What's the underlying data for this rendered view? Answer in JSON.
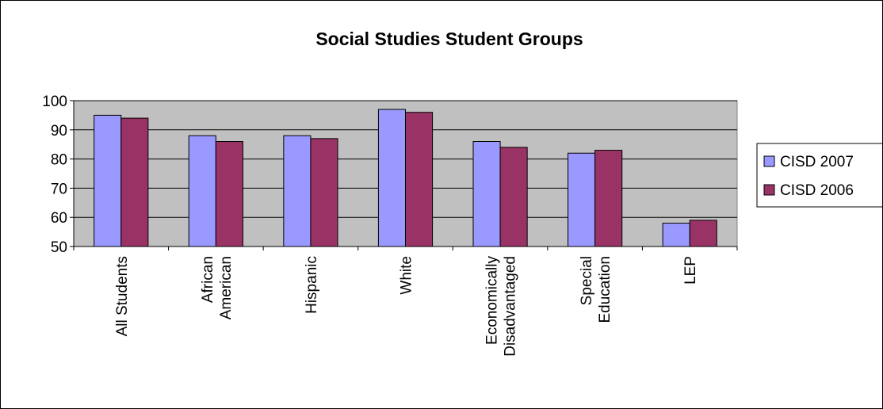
{
  "chart_data": {
    "type": "bar",
    "title": "Social Studies Student Groups",
    "xlabel": "",
    "ylabel": "",
    "ylim": [
      50,
      100
    ],
    "yticks": [
      50,
      60,
      70,
      80,
      90,
      100
    ],
    "grid": true,
    "legend_position": "right",
    "categories": [
      [
        "All Students"
      ],
      [
        "African",
        "American"
      ],
      [
        "Hispanic"
      ],
      [
        "White"
      ],
      [
        "Economically",
        "Disadvantaged"
      ],
      [
        "Special",
        "Education"
      ],
      [
        "LEP"
      ]
    ],
    "series": [
      {
        "name": "CISD 2007",
        "color": "#9999ff",
        "values": [
          95,
          88,
          88,
          97,
          86,
          82,
          58
        ]
      },
      {
        "name": "CISD 2006",
        "color": "#993366",
        "values": [
          94,
          86,
          87,
          96,
          84,
          83,
          59
        ]
      }
    ],
    "plot_background": "#c0c0c0"
  }
}
